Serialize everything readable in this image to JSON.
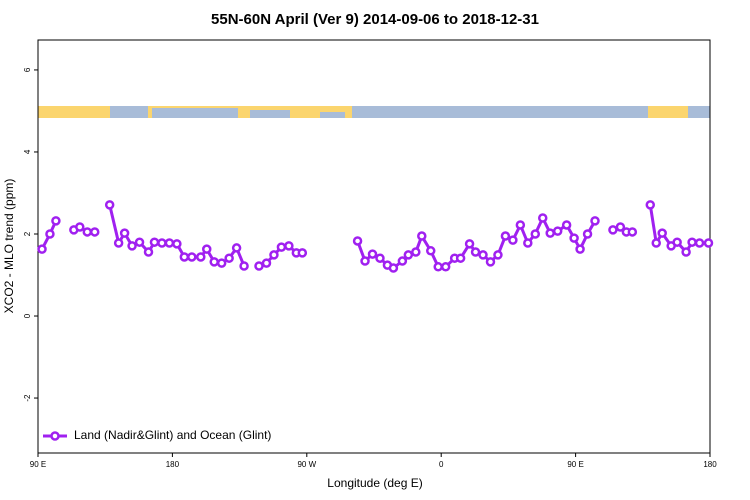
{
  "chart_data": {
    "type": "line",
    "title": "55N-60N April (Ver 9)   2014-09-06 to 2018-12-31",
    "x_label": "Longitude (deg E)",
    "y_label": "XCO2 - MLO trend (ppm)",
    "xlim": [
      90,
      540
    ],
    "ylim": [
      -3.34,
      6.73
    ],
    "xticks": [
      {
        "value": 90,
        "label": "90 E"
      },
      {
        "value": 180,
        "label": "180"
      },
      {
        "value": 270,
        "label": "90 W"
      },
      {
        "value": 360,
        "label": "0"
      },
      {
        "value": 450,
        "label": "90 E"
      },
      {
        "value": 540,
        "label": "180"
      }
    ],
    "yticks": [
      -2,
      0,
      2,
      4,
      6
    ],
    "legend": "bottom-left",
    "x": [
      92.7,
      98,
      102,
      108,
      114,
      118,
      123,
      128,
      133,
      138,
      144,
      148,
      153,
      158,
      164,
      168,
      173,
      178,
      183,
      188,
      193,
      199,
      203,
      208,
      213,
      218,
      223,
      228,
      233,
      238,
      243,
      248,
      253,
      258,
      263,
      267,
      285,
      304,
      309,
      314,
      319,
      324,
      328,
      334,
      338,
      343,
      347,
      353,
      358,
      363,
      369,
      373,
      379,
      383,
      388,
      393,
      398,
      403,
      408,
      413,
      418,
      423,
      428,
      433,
      438,
      444,
      449,
      453,
      458,
      463,
      469,
      475,
      480,
      484,
      488,
      494,
      500,
      504,
      508,
      514,
      518,
      524,
      528,
      533,
      539
    ],
    "series": [
      {
        "name": "Land (Nadir&Glint) and Ocean (Glint)",
        "color": "#a020f0",
        "values": [
          1.63,
          2.0,
          2.32,
          null,
          2.1,
          2.17,
          2.05,
          2.05,
          null,
          2.71,
          1.78,
          2.02,
          1.71,
          1.8,
          1.56,
          1.8,
          1.78,
          1.78,
          1.76,
          1.44,
          1.44,
          1.44,
          1.63,
          1.32,
          1.29,
          1.41,
          1.66,
          1.22,
          null,
          1.22,
          1.29,
          1.49,
          1.68,
          1.71,
          1.54,
          1.54,
          null,
          1.83,
          1.34,
          1.51,
          1.41,
          1.24,
          1.17,
          1.34,
          1.49,
          1.56,
          1.95,
          1.59,
          1.2,
          1.2,
          1.41,
          1.41,
          1.76,
          1.56,
          1.49,
          1.32,
          1.49,
          1.95,
          1.85,
          2.22,
          1.78,
          2.0,
          2.39,
          2.02,
          2.07,
          2.22,
          1.9,
          1.63,
          2.0,
          2.32,
          null,
          2.1,
          2.17,
          2.05,
          2.05,
          null,
          2.71,
          1.78,
          2.02,
          1.71,
          1.8,
          1.56,
          1.8,
          1.78,
          1.78
        ]
      }
    ]
  }
}
